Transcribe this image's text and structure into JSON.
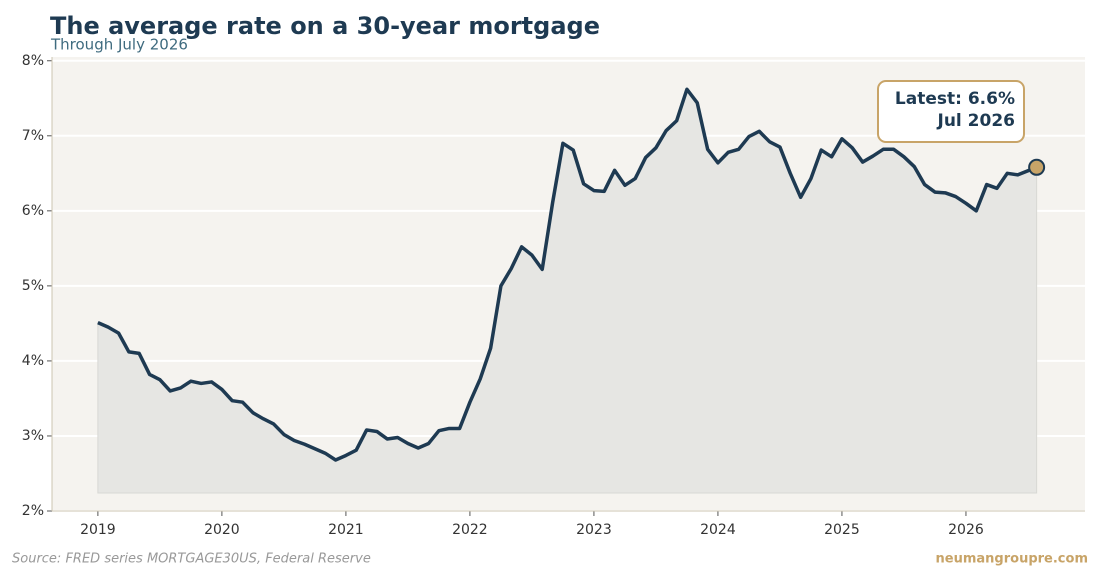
{
  "chart_data": {
    "type": "line",
    "title": "The average rate on a 30-year mortgage",
    "subtitle": "Through July 2026",
    "source": "Source: FRED series MORTGAGE30US, Federal Reserve",
    "watermark": "neumangroupre.com",
    "annotation": [
      "Latest: 6.6%",
      "Jul 2026"
    ],
    "color": "#1e3a52",
    "fill_color": "#e6e6e3",
    "marker_color": "#c8a468",
    "grid": true,
    "xlim": [
      2018.63,
      2026.96
    ],
    "ylim": [
      2,
      8.05
    ],
    "xticks": [
      2019,
      2020,
      2021,
      2022,
      2023,
      2024,
      2025,
      2026
    ],
    "yticks": [
      {
        "value": 2,
        "label": "2%"
      },
      {
        "value": 3,
        "label": "3%"
      },
      {
        "value": 4,
        "label": "4%"
      },
      {
        "value": 5,
        "label": "5%"
      },
      {
        "value": 6,
        "label": "6%"
      },
      {
        "value": 7,
        "label": "7%"
      },
      {
        "value": 8,
        "label": "8%"
      }
    ],
    "x": [
      2019,
      2019.083,
      2019.167,
      2019.25,
      2019.333,
      2019.417,
      2019.5,
      2019.583,
      2019.667,
      2019.75,
      2019.833,
      2019.917,
      2020,
      2020.083,
      2020.167,
      2020.25,
      2020.333,
      2020.417,
      2020.5,
      2020.583,
      2020.667,
      2020.75,
      2020.833,
      2020.917,
      2021,
      2021.083,
      2021.167,
      2021.25,
      2021.333,
      2021.417,
      2021.5,
      2021.583,
      2021.667,
      2021.75,
      2021.833,
      2021.917,
      2022,
      2022.083,
      2022.167,
      2022.25,
      2022.333,
      2022.417,
      2022.5,
      2022.583,
      2022.667,
      2022.75,
      2022.833,
      2022.917,
      2023,
      2023.083,
      2023.167,
      2023.25,
      2023.333,
      2023.417,
      2023.5,
      2023.583,
      2023.667,
      2023.75,
      2023.833,
      2023.917,
      2024,
      2024.083,
      2024.167,
      2024.25,
      2024.333,
      2024.417,
      2024.5,
      2024.583,
      2024.667,
      2024.75,
      2024.833,
      2024.917,
      2025,
      2025.083,
      2025.167,
      2025.25,
      2025.333,
      2025.417,
      2025.5,
      2025.583,
      2025.667,
      2025.75,
      2025.833,
      2025.917,
      2026,
      2026.083,
      2026.167,
      2026.25,
      2026.333,
      2026.417,
      2026.57
    ],
    "values": [
      4.51,
      4.45,
      4.37,
      4.12,
      4.1,
      3.82,
      3.75,
      3.6,
      3.64,
      3.73,
      3.7,
      3.72,
      3.62,
      3.47,
      3.45,
      3.31,
      3.23,
      3.16,
      3.02,
      2.94,
      2.89,
      2.83,
      2.77,
      2.68,
      2.74,
      2.81,
      3.08,
      3.06,
      2.96,
      2.98,
      2.9,
      2.84,
      2.9,
      3.07,
      3.1,
      3.1,
      3.45,
      3.76,
      4.17,
      5.0,
      5.23,
      5.52,
      5.41,
      5.22,
      6.11,
      6.9,
      6.81,
      6.36,
      6.27,
      6.26,
      6.54,
      6.34,
      6.43,
      6.71,
      6.84,
      7.07,
      7.2,
      7.62,
      7.44,
      6.82,
      6.64,
      6.78,
      6.82,
      6.99,
      7.06,
      6.92,
      6.85,
      6.5,
      6.18,
      6.43,
      6.81,
      6.72,
      6.96,
      6.84,
      6.65,
      6.73,
      6.82,
      6.82,
      6.72,
      6.59,
      6.35,
      6.25,
      6.24,
      6.19,
      6.1,
      6.0,
      6.35,
      6.3,
      6.5,
      6.48,
      6.58
    ]
  }
}
